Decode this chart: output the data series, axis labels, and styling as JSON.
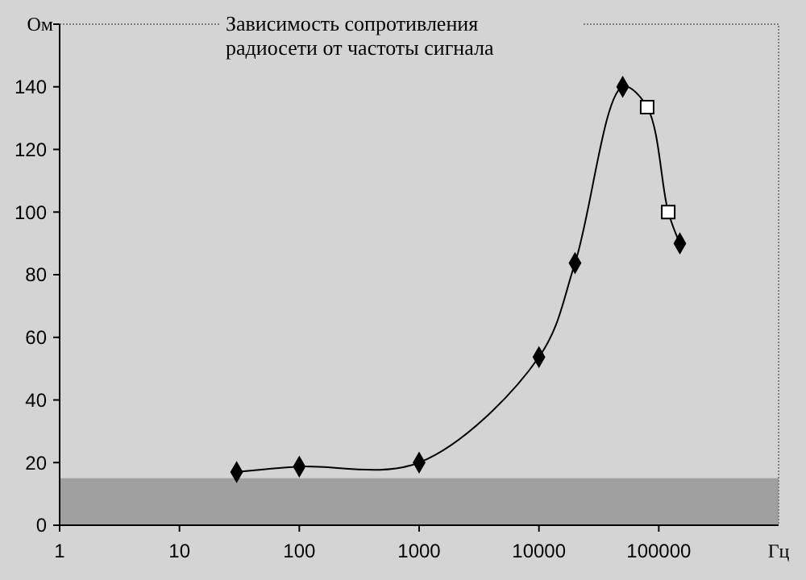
{
  "chart_data": {
    "type": "line",
    "title": "Зависимость сопротивления\nрадиосети от частоты сигнала",
    "xlabel": "Гц",
    "ylabel": "Ом",
    "log": "x",
    "xlim": [
      1,
      1000000
    ],
    "xticks": [
      1,
      10,
      100,
      1000,
      10000,
      100000
    ],
    "ylim": [
      0,
      160
    ],
    "yticks": [
      0,
      20,
      40,
      60,
      80,
      100,
      120,
      140,
      {
        "value": 160,
        "label": null
      }
    ],
    "bands": [
      {
        "axis": "y",
        "from": 0,
        "to": 15,
        "color": "#a0a0a0"
      }
    ],
    "grid": false,
    "series": [
      {
        "color": "#000000",
        "marker": "none",
        "line_style": "solid",
        "x": [
          30,
          100,
          1000,
          10000,
          20000,
          50000,
          80000,
          120000,
          150000
        ],
        "values": [
          17,
          18.7,
          20,
          53.7,
          83.7,
          140,
          133.5,
          100,
          90
        ]
      },
      {
        "type": "scatter",
        "color": "#000000",
        "marker": "diamond",
        "x": [
          30,
          100,
          1000,
          10000,
          20000,
          50000,
          150000
        ],
        "values": [
          17,
          18.7,
          20,
          53.7,
          83.7,
          140,
          90
        ]
      },
      {
        "type": "scatter",
        "color": "#ffffff",
        "marker": "square",
        "x": [
          80000,
          120000
        ],
        "values": [
          133.5,
          100
        ]
      }
    ]
  }
}
